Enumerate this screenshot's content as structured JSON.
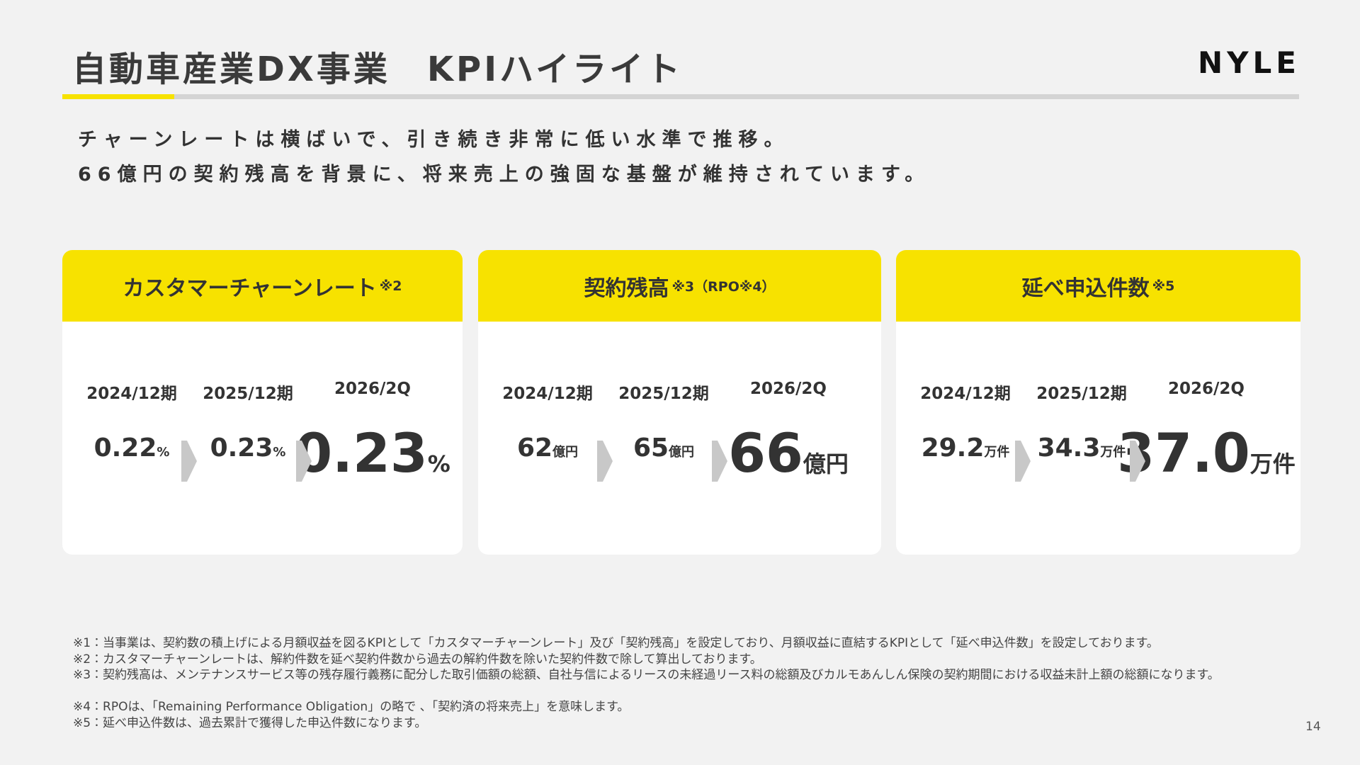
{
  "header": {
    "title": "自動車産業DX事業　KPIハイライト",
    "logo": "NYLE"
  },
  "lead": [
    "チャーンレートは横ばいで、引き続き非常に低い水準で推移。",
    "66億円の契約残高を背景に、将来売上の強固な基盤が維持されています。"
  ],
  "cards": [
    {
      "title": "カスタマーチャーンレート",
      "note": "※2",
      "periods": [
        "2024/12期",
        "2025/12期",
        "2026/2Q"
      ],
      "values": [
        "0.22",
        "0.23",
        "0.23"
      ],
      "unit": "%"
    },
    {
      "title": "契約残高",
      "note": "※3（RPO※4）",
      "periods": [
        "2024/12期",
        "2025/12期",
        "2026/2Q"
      ],
      "values": [
        "62",
        "65",
        "66"
      ],
      "unit": "億円"
    },
    {
      "title": "延べ申込件数",
      "note": "※5",
      "periods": [
        "2024/12期",
        "2025/12期",
        "2026/2Q"
      ],
      "values": [
        "29.2",
        "34.3",
        "37.0"
      ],
      "unit": "万件"
    }
  ],
  "footnotes": [
    "※1：当事業は、契約数の積上げによる月額収益を図るKPIとして「カスタマーチャーンレート」及び「契約残高」を設定しており、月額収益に直結するKPIとして「延べ申込件数」を設定しております。",
    "※2：カスタマーチャーンレートは、解約件数を延べ契約件数から過去の解約件数を除いた契約件数で除して算出しております。",
    "※3：契約残高は、メンテナンスサービス等の残存履行義務に配分した取引価額の総額、自社与信によるリースの未経過リース料の総額及びカルモあんしん保険の契約期間における収益未計上額の総額になります。",
    "※4：RPOは、「Remaining Performance Obligation」の略で 、「契約済の将来売上」を意味します。",
    "※5：延べ申込件数は、過去累計で獲得した申込件数になります。"
  ],
  "page_number": "14"
}
